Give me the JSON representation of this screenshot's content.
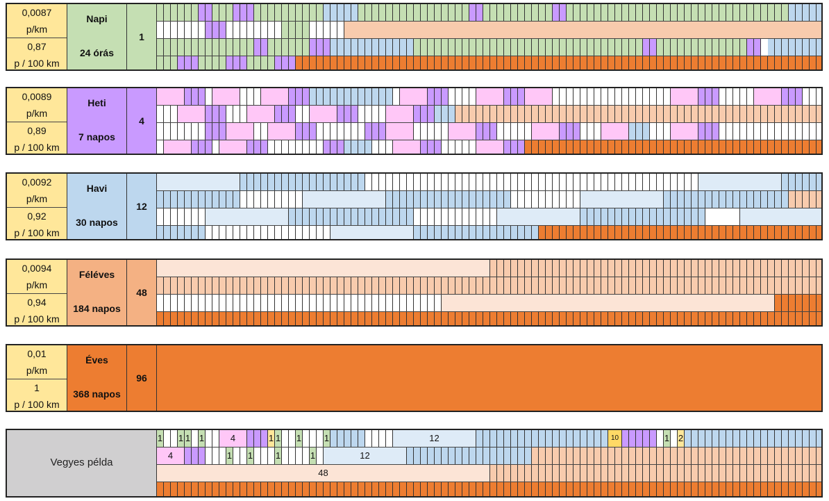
{
  "colors": {
    "napi": "#c5dfb3",
    "heti": "#c99aff",
    "havi": "#bdd7ee",
    "feleves": "#f4b183",
    "eves": "#ed7d31",
    "price": "#ffe79a",
    "vegyes": "#d0cfd0"
  },
  "blocks": [
    {
      "id": "napi",
      "price1": "0,0087",
      "unit1": "p/km",
      "price2": "0,87",
      "unit2": "p / 100 km",
      "name": "Napi",
      "duration": "24 órás",
      "count": "1"
    },
    {
      "id": "heti",
      "price1": "0,0089",
      "unit1": "p/km",
      "price2": "0,89",
      "unit2": "p / 100 km",
      "name": "Heti",
      "duration": "7 napos",
      "count": "4"
    },
    {
      "id": "havi",
      "price1": "0,0092",
      "unit1": "p/km",
      "price2": "0,92",
      "unit2": "p / 100 km",
      "name": "Havi",
      "duration": "30 napos",
      "count": "12"
    },
    {
      "id": "feleves",
      "price1": "0,0094",
      "unit1": "p/km",
      "price2": "0,94",
      "unit2": "p / 100 km",
      "name": "Féléves",
      "duration": "184 napos",
      "count": "48"
    },
    {
      "id": "eves",
      "price1": "0,01",
      "unit1": "p/km",
      "price2": "1",
      "unit2": "p / 100 km",
      "name": "Éves",
      "duration": "368 napos",
      "count": "96"
    }
  ],
  "vegyes": {
    "label": "Vegyes példa",
    "row1_labels": [
      "1",
      "1",
      "1",
      "1",
      "4",
      "1",
      "1",
      "1",
      "1",
      "12",
      "10",
      "1",
      "2"
    ],
    "row2_labels": [
      "4",
      "1",
      "1",
      "1",
      "1",
      "12"
    ],
    "row3_labels": [
      "48"
    ]
  }
}
